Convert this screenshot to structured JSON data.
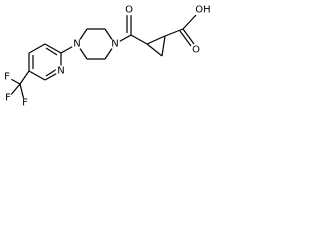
{
  "atoms": [
    {
      "label": "F"
    },
    {
      "label": "F"
    },
    {
      "label": "F"
    },
    {
      "label": "N"
    },
    {
      "label": "N"
    },
    {
      "label": "N"
    },
    {
      "label": "O"
    },
    {
      "label": "OH"
    },
    {
      "label": "O"
    }
  ]
}
